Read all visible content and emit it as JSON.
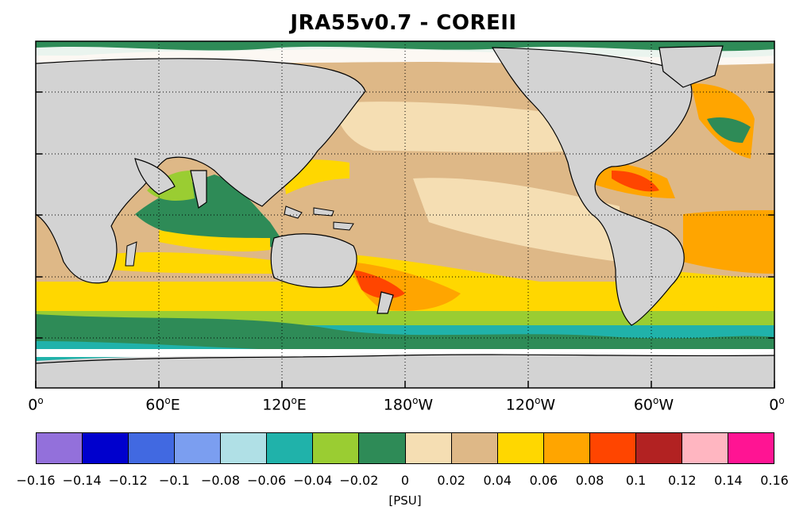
{
  "title": "JRA55v0.7 - COREII",
  "longitude_labels": [
    {
      "deg": "0",
      "hemi": ""
    },
    {
      "deg": "60",
      "hemi": "E"
    },
    {
      "deg": "120",
      "hemi": "E"
    },
    {
      "deg": "180",
      "hemi": "W"
    },
    {
      "deg": "120",
      "hemi": "W"
    },
    {
      "deg": "60",
      "hemi": "W"
    },
    {
      "deg": "0",
      "hemi": ""
    }
  ],
  "colorbar": {
    "colors": [
      "#9370db",
      "#0000cd",
      "#4169e1",
      "#7b9ef0",
      "#b0e0e6",
      "#20b2aa",
      "#9acd32",
      "#2e8b57",
      "#f5deb3",
      "#deb887",
      "#ffd700",
      "#ffa500",
      "#ff4500",
      "#b22222",
      "#ffb6c1",
      "#ff1493"
    ],
    "tick_labels": [
      "-0.16",
      "-0.14",
      "-0.12",
      "-0.1",
      "-0.08",
      "-0.06",
      "-0.04",
      "-0.02",
      "0",
      "0.02",
      "0.04",
      "0.06",
      "0.08",
      "0.1",
      "0.12",
      "0.14",
      "0.16"
    ],
    "units": "[PSU]"
  },
  "map_colors": {
    "land": "#d3d3d3",
    "ocean_base": "#deb887"
  }
}
